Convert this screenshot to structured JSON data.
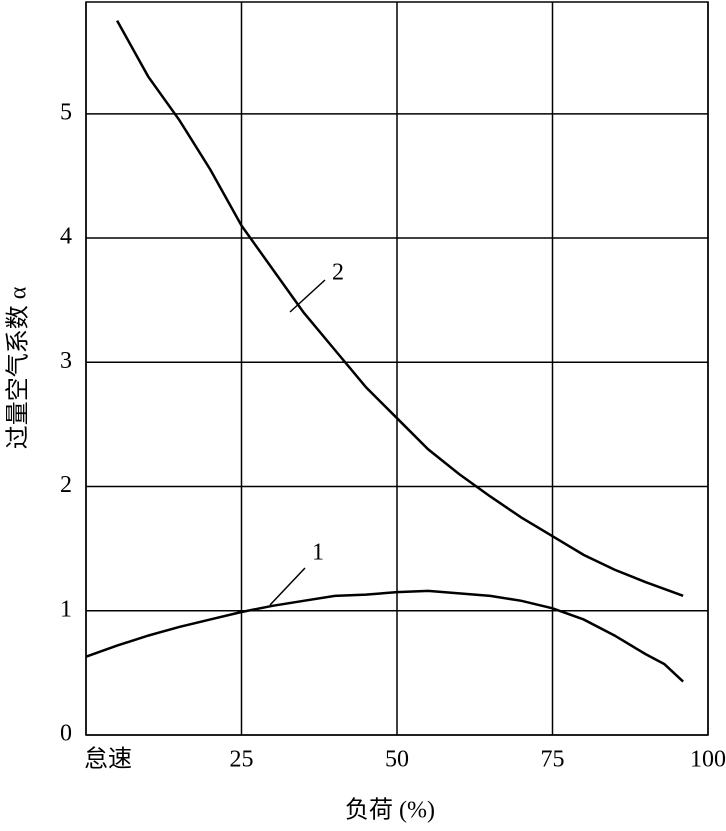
{
  "chart_data": {
    "type": "line",
    "x_label": "负荷 (%)",
    "y_label": "过量空气系数 α",
    "xlim": [
      0,
      100
    ],
    "xticks": [
      {
        "value": 0,
        "label": "怠速"
      },
      25,
      50,
      75,
      100
    ],
    "ylim": [
      0,
      5.9
    ],
    "yticks": [
      0,
      1,
      2,
      3,
      4,
      5
    ],
    "grid": true,
    "series": [
      {
        "name": "1",
        "color": "#000000",
        "x": [
          0,
          5,
          10,
          15,
          20,
          25,
          30,
          35,
          40,
          45,
          50,
          55,
          60,
          65,
          70,
          75,
          80,
          85,
          90,
          93,
          96
        ],
        "values": [
          0.63,
          0.72,
          0.8,
          0.87,
          0.93,
          0.99,
          1.04,
          1.08,
          1.12,
          1.13,
          1.15,
          1.16,
          1.14,
          1.12,
          1.08,
          1.02,
          0.93,
          0.8,
          0.65,
          0.57,
          0.43
        ]
      },
      {
        "name": "2",
        "color": "#000000",
        "x": [
          5,
          10,
          15,
          20,
          25,
          30,
          35,
          40,
          45,
          50,
          55,
          60,
          65,
          70,
          75,
          80,
          85,
          90,
          96
        ],
        "values": [
          5.75,
          5.3,
          4.95,
          4.55,
          4.1,
          3.75,
          3.4,
          3.1,
          2.8,
          2.55,
          2.3,
          2.1,
          1.92,
          1.75,
          1.6,
          1.45,
          1.33,
          1.23,
          1.12
        ]
      }
    ]
  }
}
